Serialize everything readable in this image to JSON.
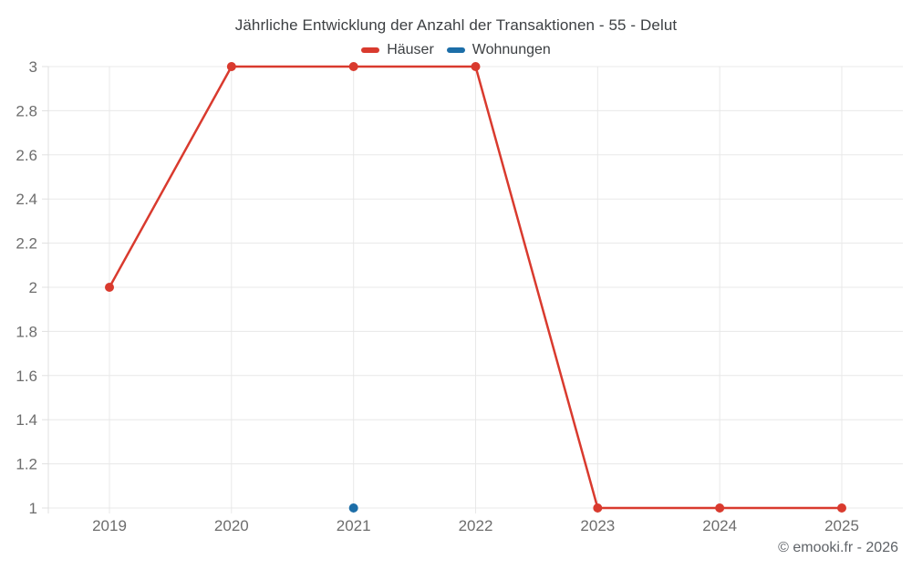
{
  "title": "Jährliche Entwicklung der Anzahl der Transaktionen - 55 - Delut",
  "legend": [
    {
      "label": "Häuser",
      "color": "#d93a2e"
    },
    {
      "label": "Wohnungen",
      "color": "#1c6ea8"
    }
  ],
  "footer": {
    "copyright": "© emooki.fr - 2026"
  },
  "colors": {
    "grid": "#e8e8e8",
    "axis": "#e0e0e0",
    "tick_label": "#6d6d6d"
  },
  "chart_data": {
    "type": "line",
    "title": "Jährliche Entwicklung der Anzahl der Transaktionen - 55 - Delut",
    "x": [
      2019,
      2020,
      2021,
      2022,
      2023,
      2024,
      2025
    ],
    "x_labels": [
      "2019",
      "2020",
      "2021",
      "2022",
      "2023",
      "2024",
      "2025"
    ],
    "series": [
      {
        "name": "Häuser",
        "color": "#d93a2e",
        "values": [
          2,
          3,
          3,
          3,
          1,
          1,
          1
        ]
      },
      {
        "name": "Wohnungen",
        "color": "#1c6ea8",
        "values": [
          null,
          null,
          1,
          null,
          null,
          null,
          null
        ]
      }
    ],
    "xlabel": "",
    "ylabel": "",
    "ylim": [
      1,
      3
    ],
    "yticks": [
      1,
      1.2,
      1.4,
      1.6,
      1.8,
      2,
      2.2,
      2.4,
      2.6,
      2.8,
      3
    ],
    "ytick_labels": [
      "1",
      "1.2",
      "1.4",
      "1.6",
      "1.8",
      "2",
      "2.2",
      "2.4",
      "2.6",
      "2.8",
      "3"
    ],
    "grid": true,
    "legend_position": "top"
  }
}
